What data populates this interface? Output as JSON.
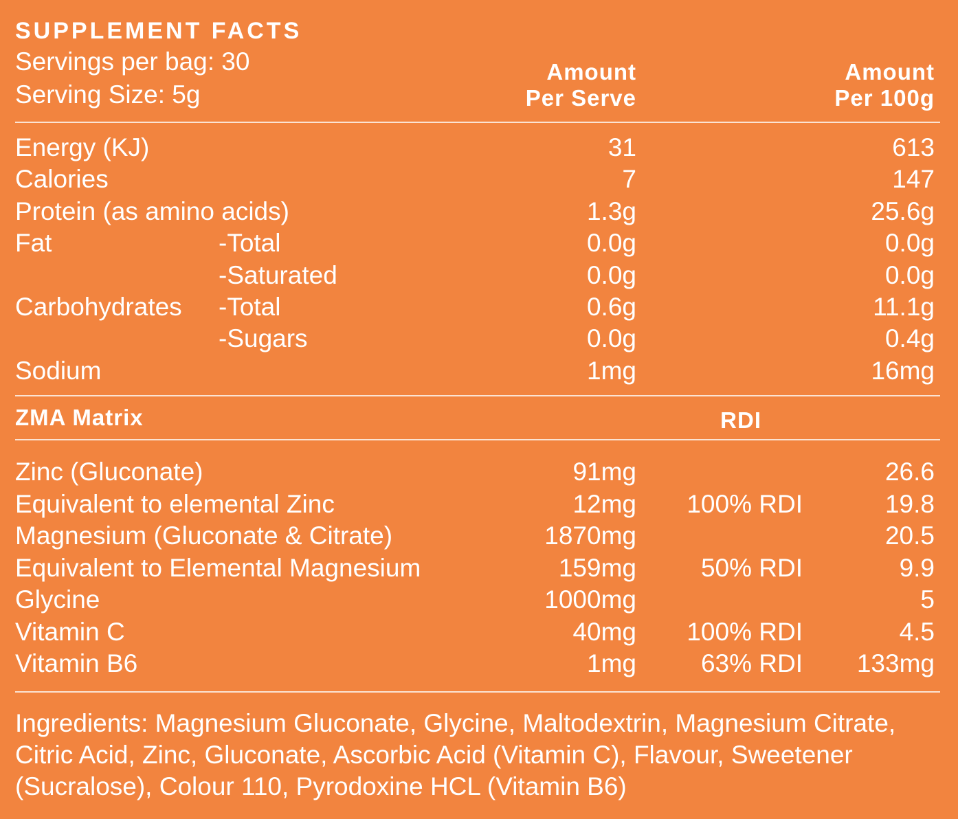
{
  "header": {
    "title": "SUPPLEMENT FACTS",
    "servings": "Servings per bag: 30",
    "serving_size": "Serving Size: 5g",
    "col_serve": [
      "Amount",
      "Per Serve"
    ],
    "col_100g": [
      "Amount",
      "Per 100g"
    ]
  },
  "nutrition": [
    {
      "name": "Energy (KJ)",
      "serve": "31",
      "per100": "613"
    },
    {
      "name": "Calories",
      "serve": "7",
      "per100": "147"
    },
    {
      "name": "Protein (as amino acids)",
      "serve": "1.3g",
      "per100": "25.6g"
    },
    {
      "name": "Fat",
      "sub": "-Total",
      "serve": "0.0g",
      "per100": "0.0g"
    },
    {
      "sub": "-Saturated",
      "serve": "0.0g",
      "per100": "0.0g"
    },
    {
      "name": "Carbohydrates",
      "sub": "-Total",
      "serve": "0.6g",
      "per100": "11.1g"
    },
    {
      "sub": "-Sugars",
      "serve": "0.0g",
      "per100": "0.4g"
    },
    {
      "name": "Sodium",
      "serve": "1mg",
      "per100": "16mg"
    }
  ],
  "zma": {
    "title": "ZMA Matrix",
    "rdi_header": "RDI",
    "rows": [
      {
        "name": "Zinc (Gluconate)",
        "amount": "91mg",
        "value": "26.6"
      },
      {
        "name": "Equivalent to elemental Zinc",
        "amount": "12mg",
        "rdi": "100% RDI",
        "value": "19.8"
      },
      {
        "name": "Magnesium (Gluconate & Citrate)",
        "amount": "1870mg",
        "value": "20.5"
      },
      {
        "name": "Equivalent to Elemental Magnesium",
        "amount": "159mg",
        "rdi": "50% RDI",
        "value": "9.9"
      },
      {
        "name": "Glycine",
        "amount": "1000mg",
        "value": "5"
      },
      {
        "name": "Vitamin C",
        "amount": "40mg",
        "rdi": "100% RDI",
        "value": "4.5"
      },
      {
        "name": "Vitamin B6",
        "amount": "1mg",
        "rdi": "63% RDI",
        "value": "133mg"
      }
    ]
  },
  "ingredients": [
    "Ingredients: Magnesium Gluconate, Glycine, Maltodextrin, Magnesium Citrate,",
    "Citric Acid, Zinc, Gluconate, Ascorbic Acid (Vitamin C), Flavour, Sweetener",
    "(Sucralose), Colour 110, Pyrodoxine HCL (Vitamin B6)"
  ]
}
